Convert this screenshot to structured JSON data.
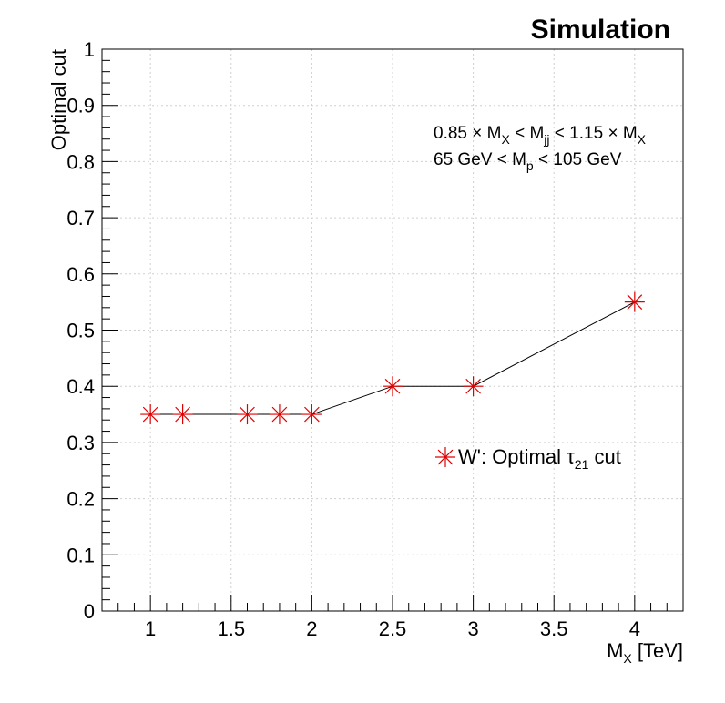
{
  "chart_data": {
    "type": "line",
    "title": "Simulation",
    "xlabel": {
      "main": "M",
      "sub": "X",
      "unit": " [TeV]"
    },
    "ylabel": "Optimal cut",
    "xlim": [
      0.7,
      4.3
    ],
    "ylim": [
      0,
      1
    ],
    "x_ticks": [
      1,
      1.5,
      2,
      2.5,
      3,
      3.5,
      4
    ],
    "x_tick_labels": [
      "1",
      "1.5",
      "2",
      "2.5",
      "3",
      "3.5",
      "4"
    ],
    "y_ticks": [
      0,
      0.1,
      0.2,
      0.3,
      0.4,
      0.5,
      0.6,
      0.7,
      0.8,
      0.9,
      1
    ],
    "y_tick_labels": [
      "0",
      "0.1",
      "0.2",
      "0.3",
      "0.4",
      "0.5",
      "0.6",
      "0.7",
      "0.8",
      "0.9",
      "1"
    ],
    "grid": true,
    "legend_placement": "lower-right",
    "annotations": [
      {
        "parts": [
          [
            "0.85 × M",
            ""
          ],
          [
            "X",
            "sub"
          ],
          [
            " < M",
            ""
          ],
          [
            "jj",
            "sub"
          ],
          [
            " < 1.15 × M",
            ""
          ],
          [
            "X",
            "sub"
          ]
        ]
      },
      {
        "parts": [
          [
            "65 GeV < M",
            ""
          ],
          [
            "p",
            "sub"
          ],
          [
            " < 105 GeV",
            ""
          ]
        ]
      }
    ],
    "series": [
      {
        "name": "W': Optimal τ21 cut",
        "name_parts": [
          [
            "W': Optimal τ",
            ""
          ],
          [
            "21",
            "sub"
          ],
          [
            " cut",
            ""
          ]
        ],
        "marker_color": "#e00000",
        "line_color": "#000000",
        "x": [
          1.0,
          1.2,
          1.6,
          1.8,
          2.0,
          2.5,
          3.0,
          4.0
        ],
        "y": [
          0.35,
          0.35,
          0.35,
          0.35,
          0.35,
          0.4,
          0.4,
          0.55
        ]
      }
    ]
  }
}
